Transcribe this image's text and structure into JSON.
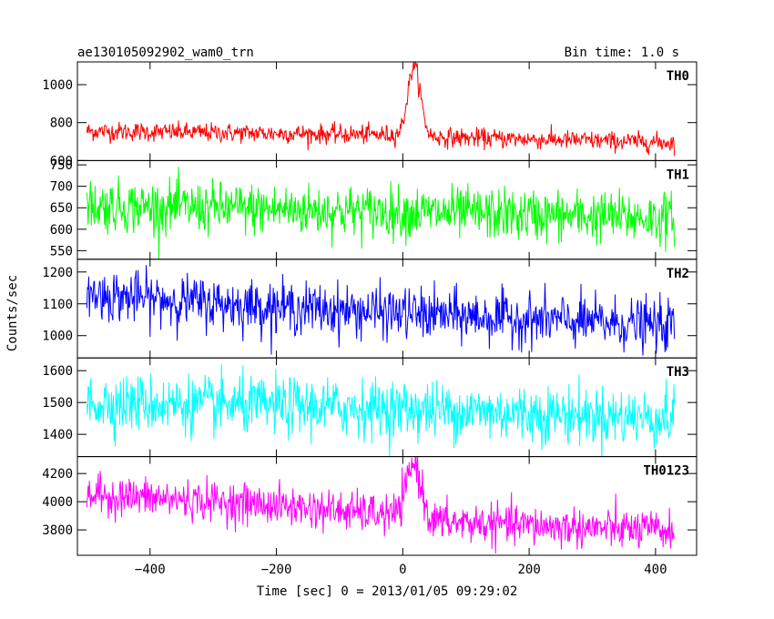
{
  "chart_data": {
    "type": "line",
    "title": "ae130105092902_wam0_trn",
    "subtitle": "Bin time: 1.0 s",
    "xlabel": "Time [sec] 0 = 2013/01/05 09:29:02",
    "ylabel": "Counts/sec",
    "xlim": [
      -515,
      465
    ],
    "x_ticks": [
      -400,
      -200,
      0,
      200,
      400
    ],
    "x_range": [
      -500,
      430
    ],
    "panels": [
      {
        "name": "TH0",
        "color": "#ff0000",
        "ylim": [
          600,
          1120
        ],
        "y_ticks": [
          600,
          800,
          1000
        ],
        "baseline_trend": [
          [
            -500,
            755
          ],
          [
            -250,
            745
          ],
          [
            0,
            735
          ],
          [
            40,
            725
          ],
          [
            430,
            695
          ]
        ],
        "noise_sd": 25,
        "peak": {
          "x": 18,
          "value": 1100,
          "width": 14
        },
        "series": [
          {
            "name": "TH0"
          }
        ]
      },
      {
        "name": "TH1",
        "color": "#00ff00",
        "ylim": [
          530,
          760
        ],
        "y_ticks": [
          550,
          600,
          650,
          700,
          750
        ],
        "baseline_trend": [
          [
            -500,
            655
          ],
          [
            0,
            640
          ],
          [
            430,
            625
          ]
        ],
        "noise_sd": 30,
        "series": [
          {
            "name": "TH1"
          }
        ]
      },
      {
        "name": "TH2",
        "color": "#0000ff",
        "ylim": [
          930,
          1240
        ],
        "y_ticks": [
          1000,
          1100,
          1200
        ],
        "baseline_trend": [
          [
            -500,
            1130
          ],
          [
            -250,
            1095
          ],
          [
            0,
            1070
          ],
          [
            430,
            1030
          ]
        ],
        "noise_sd": 40,
        "series": [
          {
            "name": "TH2"
          }
        ]
      },
      {
        "name": "TH3",
        "color": "#00ffff",
        "ylim": [
          1330,
          1640
        ],
        "y_ticks": [
          1400,
          1500,
          1600
        ],
        "baseline_trend": [
          [
            -500,
            1500
          ],
          [
            0,
            1480
          ],
          [
            430,
            1450
          ]
        ],
        "noise_sd": 45,
        "series": [
          {
            "name": "TH3"
          }
        ]
      },
      {
        "name": "TH0123",
        "color": "#ff00ff",
        "ylim": [
          3620,
          4320
        ],
        "y_ticks": [
          3800,
          4000,
          4200
        ],
        "baseline_trend": [
          [
            -500,
            4050
          ],
          [
            -250,
            3990
          ],
          [
            0,
            3900
          ],
          [
            40,
            3860
          ],
          [
            430,
            3790
          ]
        ],
        "noise_sd": 70,
        "peak": {
          "x": 18,
          "value": 4270,
          "width": 16
        },
        "series": [
          {
            "name": "TH0123"
          }
        ]
      }
    ]
  }
}
